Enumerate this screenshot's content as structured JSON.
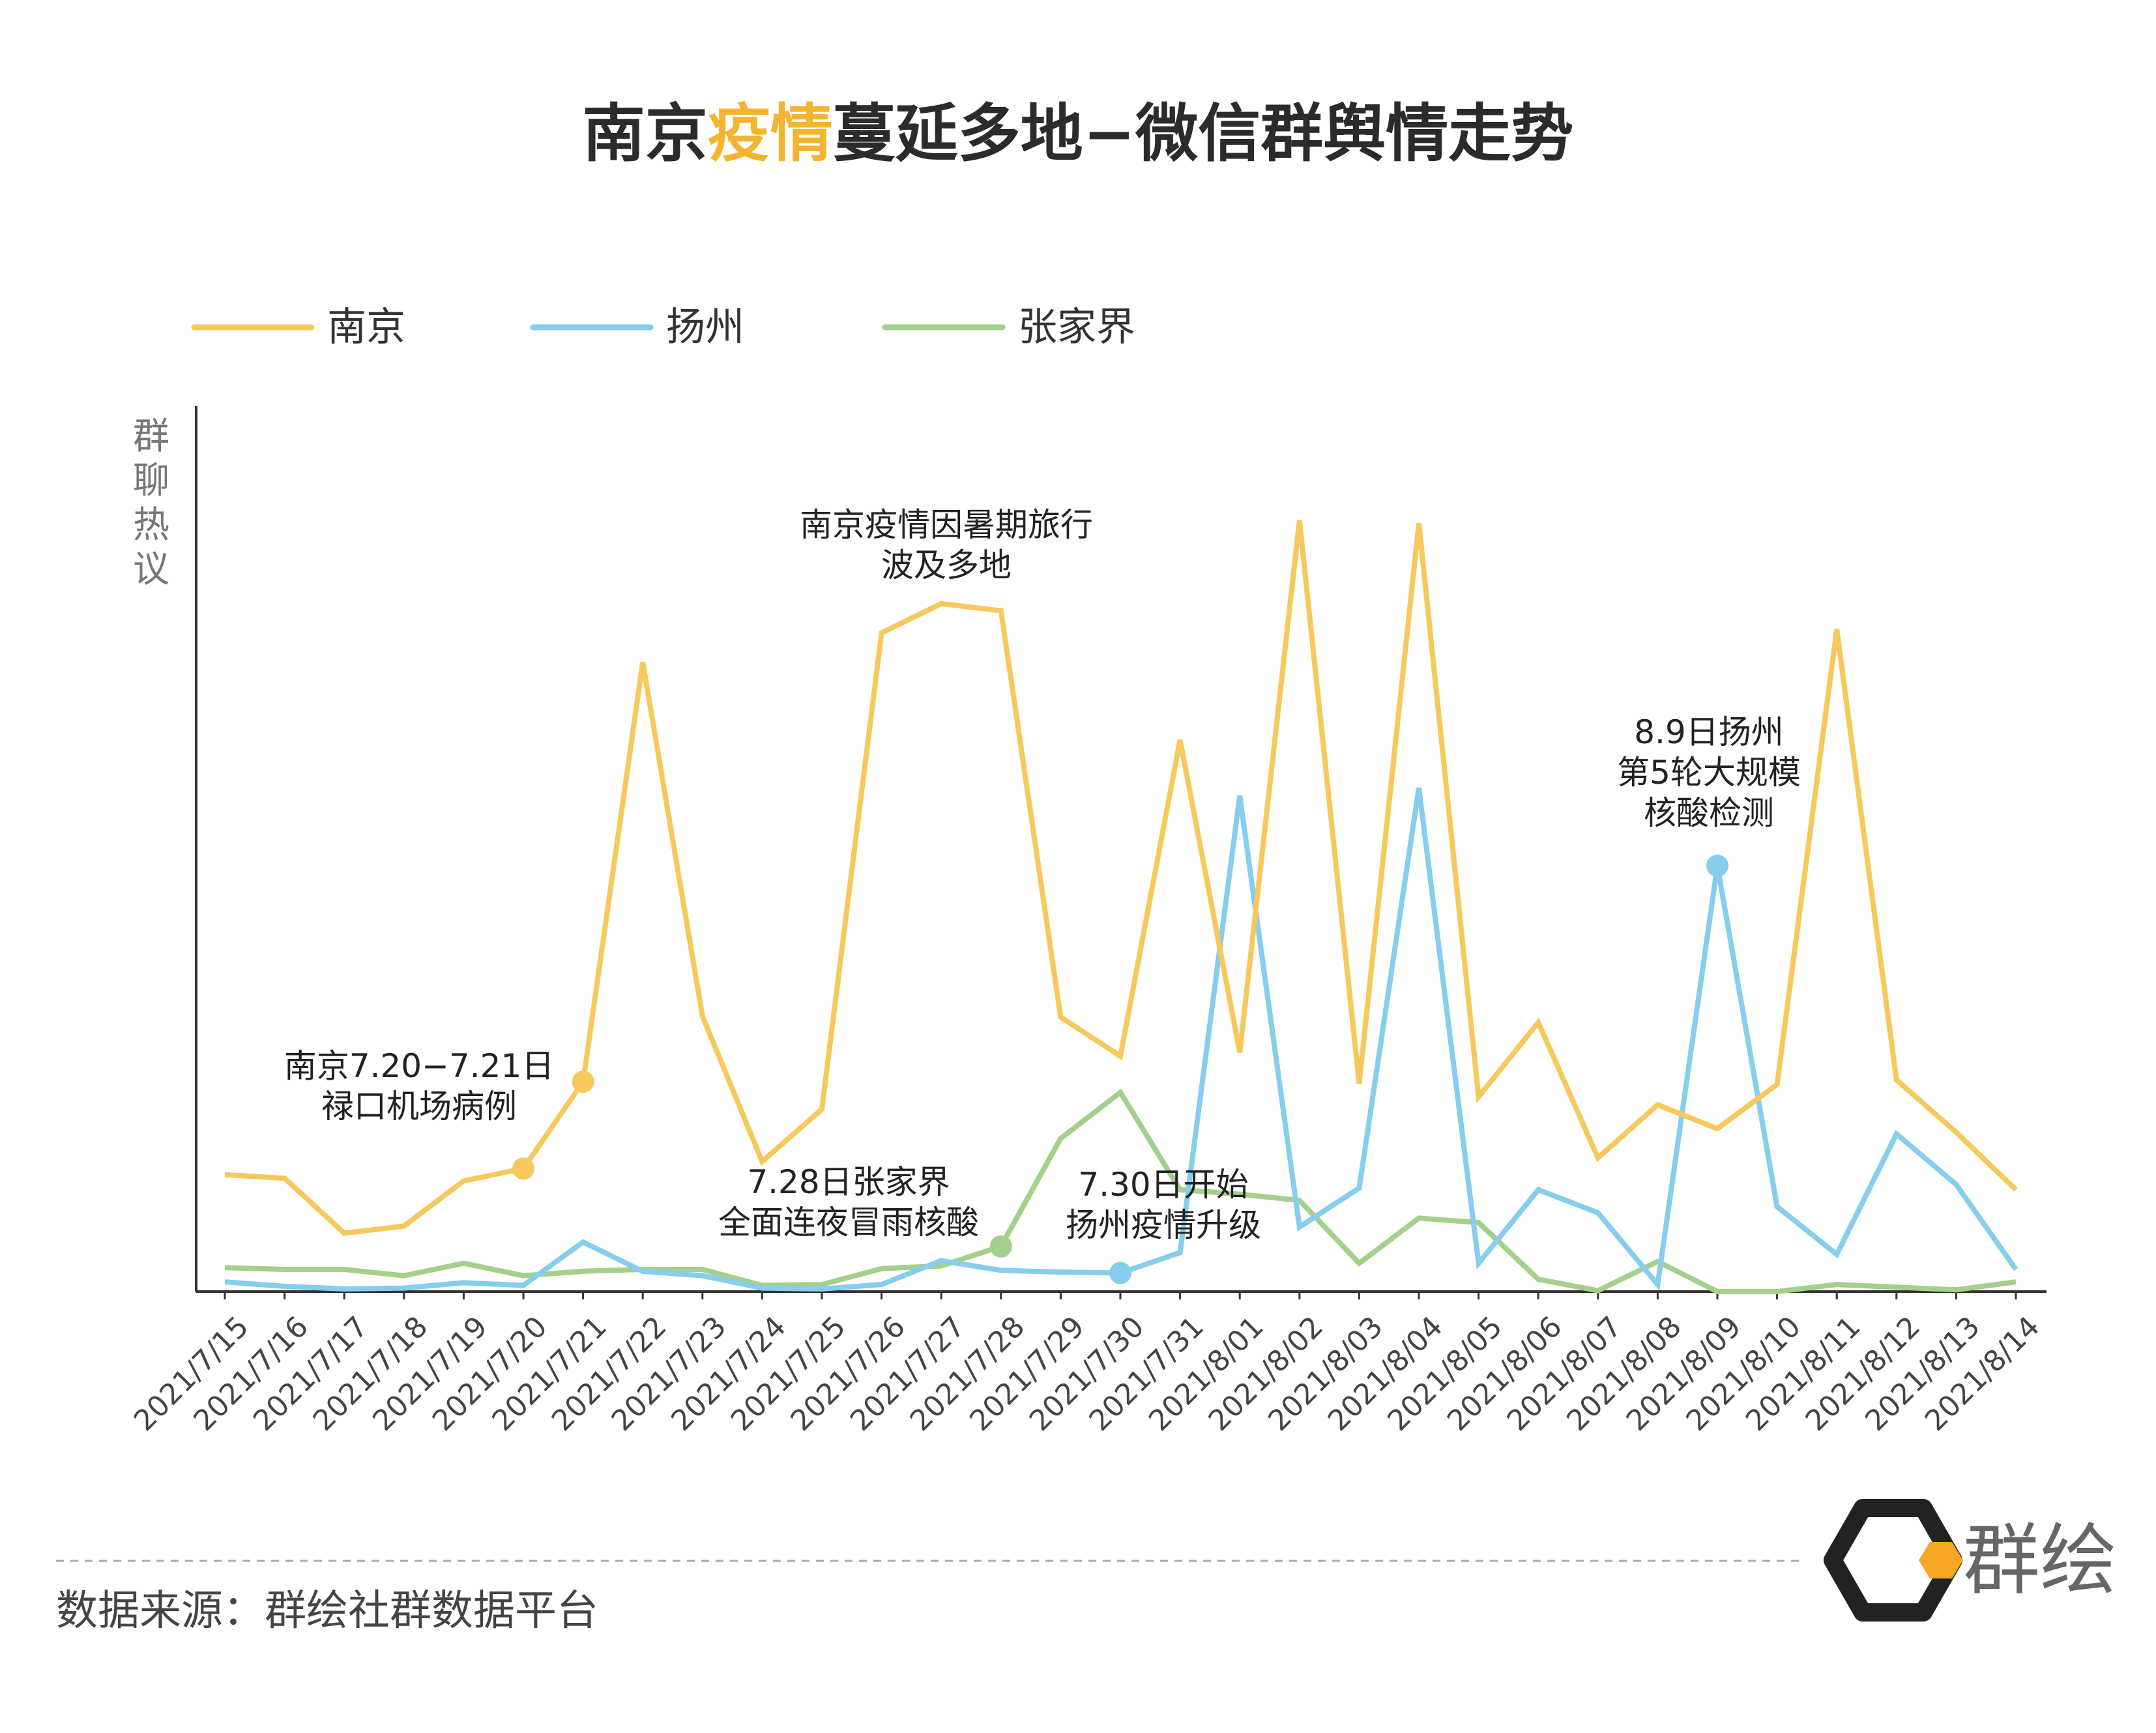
{
  "title": {
    "part1": "南京",
    "highlight": "疫情",
    "part2": "蔓延多地−微信群舆情走势"
  },
  "legend": [
    {
      "label": "南京",
      "color": "#f7c85c"
    },
    {
      "label": "扬州",
      "color": "#86cdee"
    },
    {
      "label": "张家界",
      "color": "#a3d08c"
    }
  ],
  "ylabel": [
    "群",
    "聊",
    "热",
    "议"
  ],
  "annotations": {
    "nanjing_first": [
      "南京7.20−7.21日",
      "禄口机场病例"
    ],
    "nanjing_travel": [
      "南京疫情因暑期旅行",
      "波及多地"
    ],
    "zjj": [
      "7.28日张家界",
      "全面连夜冒雨核酸"
    ],
    "yz_upgrade": [
      "7.30日开始",
      "扬州疫情升级"
    ],
    "yz_test": [
      "8.9日扬州",
      "第5轮大规模",
      "核酸检测"
    ]
  },
  "footer": {
    "source": "数据来源：群绘社群数据平台",
    "logo_text": "群绘"
  },
  "chart_data": {
    "type": "line",
    "categories": [
      "2021/7/15",
      "2021/7/16",
      "2021/7/17",
      "2021/7/18",
      "2021/7/19",
      "2021/7/20",
      "2021/7/21",
      "2021/7/22",
      "2021/7/23",
      "2021/7/24",
      "2021/7/25",
      "2021/7/26",
      "2021/7/27",
      "2021/7/28",
      "2021/7/29",
      "2021/7/30",
      "2021/7/31",
      "2021/8/01",
      "2021/8/02",
      "2021/8/03",
      "2021/8/04",
      "2021/8/05",
      "2021/8/06",
      "2021/8/07",
      "2021/8/08",
      "2021/8/09",
      "2021/8/10",
      "2021/8/11",
      "2021/8/12",
      "2021/8/13",
      "2021/8/14"
    ],
    "series": [
      {
        "name": "南京",
        "color": "#f7c85c",
        "values": [
          13.2,
          12.8,
          6.6,
          7.4,
          12.5,
          13.9,
          23.7,
          71.1,
          31.1,
          14.7,
          20.6,
          74.4,
          77.7,
          76.9,
          31.0,
          26.6,
          62.3,
          27.0,
          87.1,
          23.5,
          86.8,
          22.0,
          30.4,
          15.1,
          21.1,
          18.4,
          23.4,
          74.8,
          23.9,
          18.0,
          11.5
        ]
      },
      {
        "name": "扬州",
        "color": "#86cdee",
        "values": [
          1.1,
          0.6,
          0.3,
          0.4,
          1.0,
          0.7,
          5.6,
          2.3,
          1.8,
          0.4,
          0.3,
          0.8,
          3.5,
          2.4,
          2.2,
          2.1,
          4.4,
          56.0,
          7.3,
          11.7,
          56.9,
          3.2,
          11.5,
          8.9,
          0.8,
          48.1,
          9.6,
          4.2,
          17.8,
          12.1,
          2.5
        ]
      },
      {
        "name": "张家界",
        "color": "#a3d08c",
        "values": [
          2.7,
          2.5,
          2.5,
          1.8,
          3.2,
          1.8,
          2.3,
          2.5,
          2.5,
          0.7,
          0.8,
          2.6,
          2.9,
          5.1,
          17.3,
          22.5,
          11.5,
          11.0,
          10.3,
          3.2,
          8.3,
          7.8,
          1.4,
          0.1,
          3.4,
          0.0,
          0.0,
          0.8,
          0.5,
          0.2,
          1.1
        ]
      }
    ],
    "markers": [
      {
        "series": "南京",
        "category": "2021/7/20"
      },
      {
        "series": "南京",
        "category": "2021/7/21"
      },
      {
        "series": "张家界",
        "category": "2021/7/28"
      },
      {
        "series": "扬州",
        "category": "2021/7/30"
      },
      {
        "series": "扬州",
        "category": "2021/8/09"
      }
    ],
    "ylim": [
      0,
      100
    ],
    "title": "南京疫情蔓延多地−微信群舆情走势",
    "xlabel": "",
    "ylabel": "群聊热议",
    "grid": false,
    "legend_position": "top-left"
  }
}
